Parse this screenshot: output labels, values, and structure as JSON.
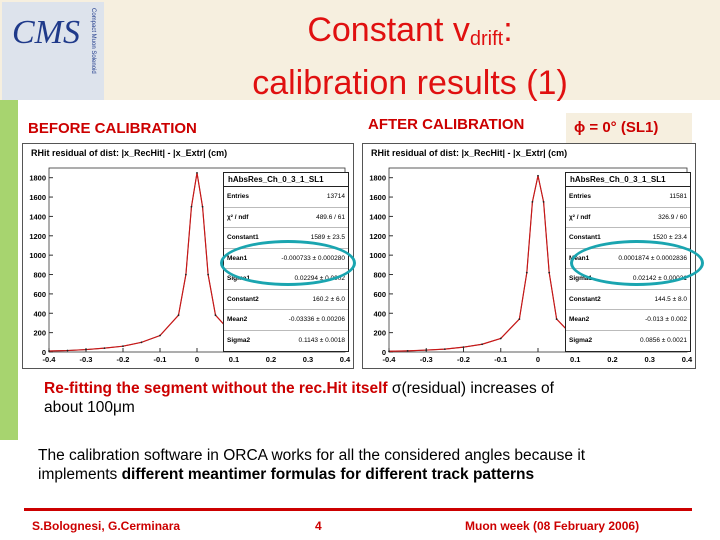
{
  "slide": {
    "title_part1": "Constant v",
    "title_sub": "drift",
    "title_part2": ":",
    "title_line2": "calibration results (1)",
    "before_label": "BEFORE CALIBRATION",
    "after_label": "AFTER CALIBRATION",
    "phi_label": "ϕ = 0° (SL1)",
    "note1_red": "Re-fitting the segment without the rec.Hit itself ",
    "note1_sigma": "σ(residual) increases of",
    "note1_line2": "about 100μm",
    "note2_line1": "The calibration software in ORCA works for all the considered angles because it",
    "note2_prefix": "implements ",
    "note2_bold": "different meantimer formulas for different track patterns",
    "footer_authors": "S.Bolognesi, G.Cerminara",
    "footer_page": "4",
    "footer_event": "Muon week  (08 February 2006)"
  },
  "logo": {
    "text": "CMS",
    "vertical_text": "Compact Muon Solenoid"
  },
  "colors": {
    "accent_red": "#cc0000",
    "band": "#f6efdf",
    "teal": "#1aa5b0",
    "green_bar": "#a7d46f"
  },
  "chart_data": [
    {
      "type": "bar",
      "title": "RHit residual of dist: |x_RecHit| - |x_Extr| (cm)",
      "x": [
        -0.4,
        -0.35,
        -0.3,
        -0.25,
        -0.2,
        -0.15,
        -0.1,
        -0.05,
        -0.03,
        -0.015,
        0,
        0.015,
        0.03,
        0.05,
        0.1,
        0.15,
        0.2,
        0.25,
        0.3,
        0.35,
        0.4
      ],
      "values": [
        10,
        15,
        25,
        40,
        60,
        100,
        170,
        380,
        800,
        1500,
        1850,
        1500,
        800,
        380,
        170,
        100,
        60,
        40,
        25,
        15,
        10
      ],
      "xlim": [
        -0.4,
        0.4
      ],
      "ylim": [
        0,
        1900
      ],
      "yticks": [
        "0",
        "200",
        "400",
        "600",
        "800",
        "1000",
        "1200",
        "1400",
        "1600",
        "1800"
      ],
      "xticks": [
        "-0.4",
        "-0.3",
        "-0.2",
        "-0.1",
        "0",
        "0.1",
        "0.2",
        "0.3",
        "0.4"
      ],
      "stats": {
        "name": "hAbsRes_Ch_0_3_1_SL1",
        "rows": [
          [
            "Entries",
            "13714"
          ],
          [
            "χ² / ndf",
            "489.6 / 61"
          ],
          [
            "Constant1",
            "1589 ± 23.5"
          ],
          [
            "Mean1",
            "-0.000733 ± 0.000280"
          ],
          [
            "Sigma1",
            "0.02294 ± 0.0002"
          ],
          [
            "Constant2",
            "160.2 ± 6.0"
          ],
          [
            "Mean2",
            "-0.03336 ± 0.00206"
          ],
          [
            "Sigma2",
            "0.1143 ± 0.0018"
          ]
        ]
      }
    },
    {
      "type": "bar",
      "title": "RHit residual of dist: |x_RecHit| - |x_Extr| (cm)",
      "x": [
        -0.4,
        -0.35,
        -0.3,
        -0.25,
        -0.2,
        -0.15,
        -0.1,
        -0.05,
        -0.03,
        -0.015,
        0,
        0.015,
        0.03,
        0.05,
        0.1,
        0.15,
        0.2,
        0.25,
        0.3,
        0.35,
        0.4
      ],
      "values": [
        8,
        12,
        20,
        30,
        50,
        80,
        140,
        340,
        820,
        1550,
        1820,
        1550,
        820,
        340,
        140,
        80,
        50,
        30,
        20,
        12,
        8
      ],
      "xlim": [
        -0.4,
        0.4
      ],
      "ylim": [
        0,
        1900
      ],
      "yticks": [
        "0",
        "200",
        "400",
        "600",
        "800",
        "1000",
        "1200",
        "1400",
        "1600",
        "1800"
      ],
      "xticks": [
        "-0.4",
        "-0.3",
        "-0.2",
        "-0.1",
        "0",
        "0.1",
        "0.2",
        "0.3",
        "0.4"
      ],
      "stats": {
        "name": "hAbsRes_Ch_0_3_1_SL1",
        "rows": [
          [
            "Entries",
            "11581"
          ],
          [
            "χ² / ndf",
            "326.9 / 60"
          ],
          [
            "Constant1",
            "1520 ± 23.4"
          ],
          [
            "Mean1",
            "0.0001874 ± 0.0002836"
          ],
          [
            "Sigma1",
            "0.02142 ± 0.00031"
          ],
          [
            "Constant2",
            "144.5 ± 8.0"
          ],
          [
            "Mean2",
            "-0.013 ± 0.002"
          ],
          [
            "Sigma2",
            "0.0856 ± 0.0021"
          ]
        ]
      }
    }
  ]
}
